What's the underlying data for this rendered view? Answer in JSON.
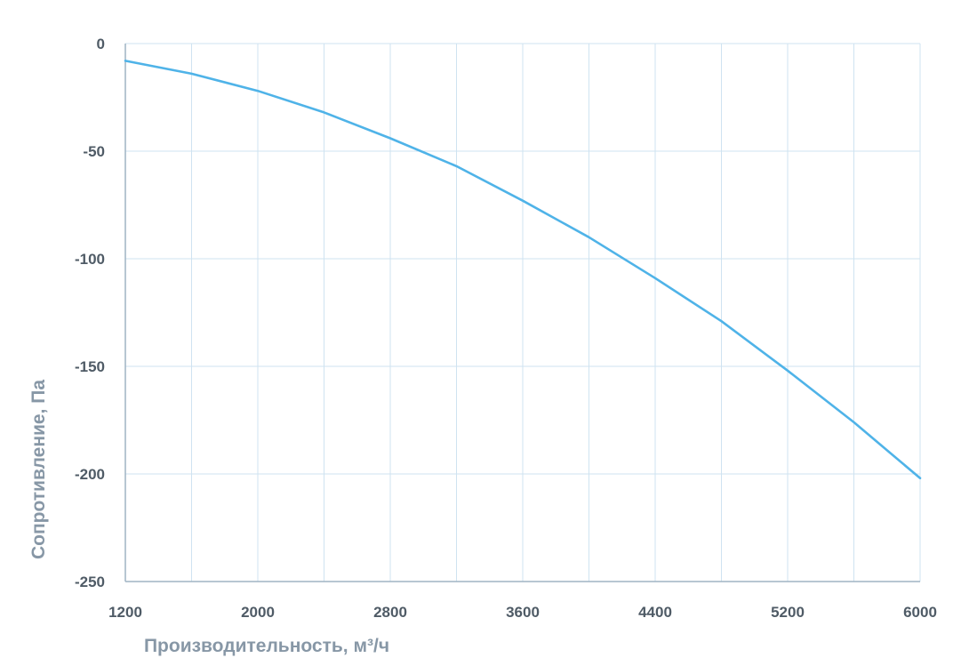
{
  "chart_data": {
    "type": "line",
    "xlabel": "Производительность, м³/ч",
    "ylabel": "Сопротивление, Па",
    "xlim": [
      1200,
      6000
    ],
    "ylim": [
      -250,
      0
    ],
    "x_ticks": [
      "1200",
      "2000",
      "2800",
      "3600",
      "4400",
      "5200",
      "6000"
    ],
    "y_ticks": [
      "0",
      "-50",
      "-100",
      "-150",
      "-200",
      "-250"
    ],
    "grid": true,
    "colors": {
      "line": "#4fb3e8",
      "grid": "#cfe3f1",
      "axis": "#9fb4c4"
    },
    "series": [
      {
        "x": [
          1200,
          1600,
          2000,
          2400,
          2800,
          3200,
          3600,
          4000,
          4400,
          4800,
          5200,
          5600,
          6000
        ],
        "values": [
          -8,
          -14,
          -22,
          -32,
          -44,
          -57,
          -73,
          -90,
          -109,
          -129,
          -152,
          -176,
          -202
        ]
      }
    ]
  }
}
